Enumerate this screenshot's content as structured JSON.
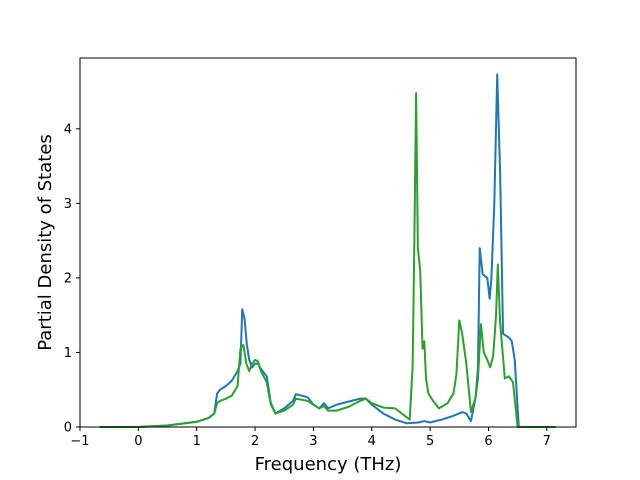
{
  "chart_data": {
    "type": "line",
    "title": "",
    "xlabel": "Frequency (THz)",
    "ylabel": "Partial Density of States",
    "xlim": [
      -1.0,
      7.5
    ],
    "ylim": [
      0,
      4.95
    ],
    "grid": false,
    "legend": "none",
    "xticks": [
      -1,
      0,
      1,
      2,
      3,
      4,
      5,
      6,
      7
    ],
    "xtick_labels": [
      "−1",
      "0",
      "1",
      "2",
      "3",
      "4",
      "5",
      "6",
      "7"
    ],
    "yticks": [
      0,
      1,
      2,
      3,
      4
    ],
    "ytick_labels": [
      "0",
      "1",
      "2",
      "3",
      "4"
    ],
    "series": [
      {
        "color": "#1f77b4",
        "x": [
          -0.66,
          0.0,
          0.5,
          1.0,
          1.2,
          1.3,
          1.35,
          1.4,
          1.5,
          1.6,
          1.7,
          1.75,
          1.78,
          1.82,
          1.86,
          1.9,
          1.95,
          2.0,
          2.05,
          2.1,
          2.2,
          2.27,
          2.35,
          2.5,
          2.65,
          2.7,
          2.9,
          3.0,
          3.1,
          3.18,
          3.25,
          3.4,
          3.6,
          3.8,
          3.9,
          4.0,
          4.2,
          4.4,
          4.6,
          4.8,
          4.9,
          5.0,
          5.2,
          5.4,
          5.55,
          5.62,
          5.7,
          5.78,
          5.82,
          5.85,
          5.9,
          5.98,
          6.02,
          6.05,
          6.1,
          6.15,
          6.2,
          6.25,
          6.35,
          6.4,
          6.45,
          6.52,
          6.6,
          7.15
        ],
        "y": [
          0.0,
          0.0,
          0.02,
          0.07,
          0.12,
          0.18,
          0.45,
          0.5,
          0.55,
          0.62,
          0.75,
          0.85,
          1.58,
          1.45,
          1.1,
          0.9,
          0.8,
          0.85,
          0.85,
          0.78,
          0.68,
          0.32,
          0.18,
          0.25,
          0.35,
          0.44,
          0.4,
          0.3,
          0.25,
          0.32,
          0.25,
          0.3,
          0.34,
          0.38,
          0.38,
          0.3,
          0.18,
          0.1,
          0.05,
          0.06,
          0.08,
          0.06,
          0.1,
          0.15,
          0.2,
          0.18,
          0.08,
          0.4,
          0.8,
          2.4,
          2.05,
          2.0,
          1.72,
          2.0,
          3.0,
          4.73,
          3.4,
          1.25,
          1.2,
          1.15,
          0.9,
          0.0,
          0.0,
          0.0
        ]
      },
      {
        "color": "#2ca02c",
        "x": [
          -0.66,
          0.0,
          0.5,
          1.0,
          1.2,
          1.3,
          1.35,
          1.4,
          1.5,
          1.6,
          1.7,
          1.75,
          1.8,
          1.85,
          1.9,
          1.95,
          2.0,
          2.05,
          2.1,
          2.2,
          2.27,
          2.35,
          2.5,
          2.65,
          2.7,
          2.9,
          3.0,
          3.1,
          3.18,
          3.25,
          3.4,
          3.6,
          3.8,
          3.9,
          4.0,
          4.2,
          4.4,
          4.65,
          4.7,
          4.73,
          4.76,
          4.79,
          4.83,
          4.87,
          4.9,
          4.93,
          4.97,
          5.05,
          5.15,
          5.3,
          5.4,
          5.45,
          5.5,
          5.55,
          5.62,
          5.7,
          5.78,
          5.82,
          5.87,
          5.92,
          5.98,
          6.03,
          6.08,
          6.13,
          6.16,
          6.2,
          6.28,
          6.35,
          6.42,
          6.5,
          6.6,
          7.15
        ],
        "y": [
          0.0,
          0.0,
          0.02,
          0.07,
          0.12,
          0.18,
          0.32,
          0.35,
          0.38,
          0.42,
          0.55,
          1.05,
          1.1,
          0.85,
          0.75,
          0.85,
          0.9,
          0.88,
          0.75,
          0.6,
          0.3,
          0.18,
          0.22,
          0.3,
          0.38,
          0.35,
          0.3,
          0.25,
          0.28,
          0.22,
          0.22,
          0.27,
          0.35,
          0.38,
          0.32,
          0.26,
          0.25,
          0.1,
          0.8,
          2.5,
          4.48,
          2.4,
          2.1,
          1.05,
          1.15,
          0.65,
          0.45,
          0.35,
          0.25,
          0.32,
          0.45,
          0.7,
          1.43,
          1.25,
          0.85,
          0.2,
          0.4,
          0.65,
          1.38,
          1.0,
          0.9,
          0.8,
          0.95,
          1.5,
          2.18,
          1.4,
          0.65,
          0.68,
          0.6,
          0.0,
          0.0,
          0.0
        ]
      }
    ]
  }
}
